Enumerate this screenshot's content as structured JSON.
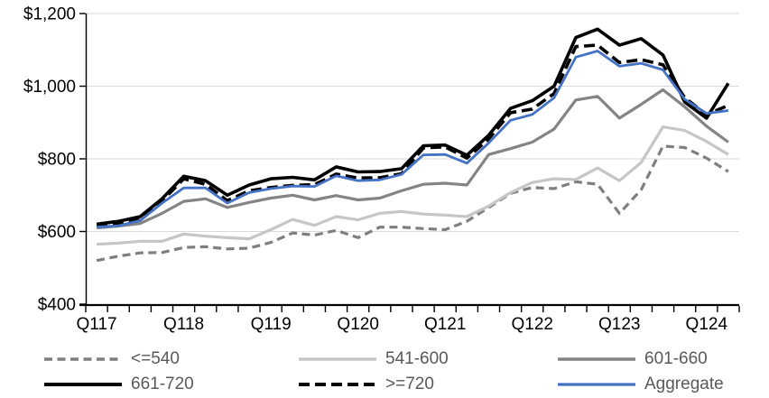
{
  "chart_data": {
    "type": "line",
    "title": "",
    "xlabel": "",
    "ylabel": "",
    "y_axis": {
      "min": 400,
      "max": 1200,
      "tick_values": [
        400,
        600,
        800,
        1000,
        1200
      ],
      "tick_labels": [
        "$400",
        "$600",
        "$800",
        "$1,000",
        "$1,200"
      ],
      "grid": true,
      "grid_color": "#D9D9D9"
    },
    "x_axis": {
      "labels": [
        "Q117",
        "Q118",
        "Q119",
        "Q120",
        "Q121",
        "Q122",
        "Q123",
        "Q124"
      ],
      "label_cell_index": [
        0,
        4,
        8,
        12,
        16,
        20,
        24,
        28
      ],
      "quarters_count": 30,
      "minor_ticks_every_quarter": true
    },
    "categories": [
      "2017Q1",
      "2017Q2",
      "2017Q3",
      "2017Q4",
      "2018Q1",
      "2018Q2",
      "2018Q3",
      "2018Q4",
      "2019Q1",
      "2019Q2",
      "2019Q3",
      "2019Q4",
      "2020Q1",
      "2020Q2",
      "2020Q3",
      "2020Q4",
      "2021Q1",
      "2021Q2",
      "2021Q3",
      "2021Q4",
      "2022Q1",
      "2022Q2",
      "2022Q3",
      "2022Q4",
      "2023Q1",
      "2023Q2",
      "2023Q3",
      "2023Q4",
      "2024Q1",
      "2024Q2"
    ],
    "series": [
      {
        "name": "<=540",
        "color": "#7F7F7F",
        "dash": "9 5.5",
        "width": 3.2,
        "values": [
          520,
          532,
          541,
          542,
          556,
          558,
          552,
          554,
          570,
          596,
          590,
          603,
          583,
          612,
          612,
          608,
          605,
          628,
          666,
          705,
          721,
          718,
          737,
          730,
          650,
          715,
          835,
          831,
          802,
          765
        ]
      },
      {
        "name": "541-600",
        "color": "#C6C6C6",
        "dash": "",
        "width": 3.2,
        "values": [
          565,
          568,
          573,
          573,
          593,
          587,
          583,
          580,
          605,
          633,
          617,
          641,
          632,
          650,
          655,
          648,
          645,
          641,
          670,
          707,
          735,
          745,
          743,
          775,
          740,
          790,
          888,
          878,
          848,
          812
        ]
      },
      {
        "name": "601-660",
        "color": "#848484",
        "dash": "",
        "width": 3.2,
        "values": [
          610,
          615,
          622,
          650,
          683,
          690,
          666,
          680,
          692,
          700,
          687,
          699,
          687,
          692,
          712,
          730,
          733,
          728,
          812,
          828,
          846,
          882,
          962,
          972,
          912,
          950,
          990,
          943,
          890,
          846
        ]
      },
      {
        "name": "661-720",
        "color": "#000000",
        "dash": "",
        "width": 3.6,
        "values": [
          620,
          628,
          641,
          690,
          752,
          740,
          700,
          728,
          745,
          749,
          742,
          778,
          764,
          765,
          773,
          836,
          838,
          810,
          865,
          939,
          960,
          1000,
          1134,
          1157,
          1113,
          1131,
          1086,
          956,
          912,
          1008
        ]
      },
      {
        "name": ">=720",
        "color": "#000000",
        "dash": "12 6",
        "width": 3.6,
        "values": [
          615,
          622,
          636,
          684,
          745,
          730,
          685,
          712,
          721,
          727,
          729,
          758,
          747,
          748,
          759,
          830,
          833,
          802,
          855,
          927,
          937,
          980,
          1109,
          1113,
          1065,
          1073,
          1059,
          968,
          922,
          947
        ]
      },
      {
        "name": "Aggregate",
        "color": "#4472C4",
        "dash": "",
        "width": 2.8,
        "values": [
          612,
          616,
          630,
          678,
          720,
          720,
          678,
          707,
          718,
          725,
          724,
          753,
          740,
          742,
          757,
          811,
          812,
          788,
          844,
          906,
          922,
          968,
          1080,
          1097,
          1055,
          1063,
          1045,
          964,
          925,
          933
        ]
      }
    ],
    "axis_color": "#000000",
    "legend_position": "bottom",
    "legend_text_color": "#595959"
  }
}
